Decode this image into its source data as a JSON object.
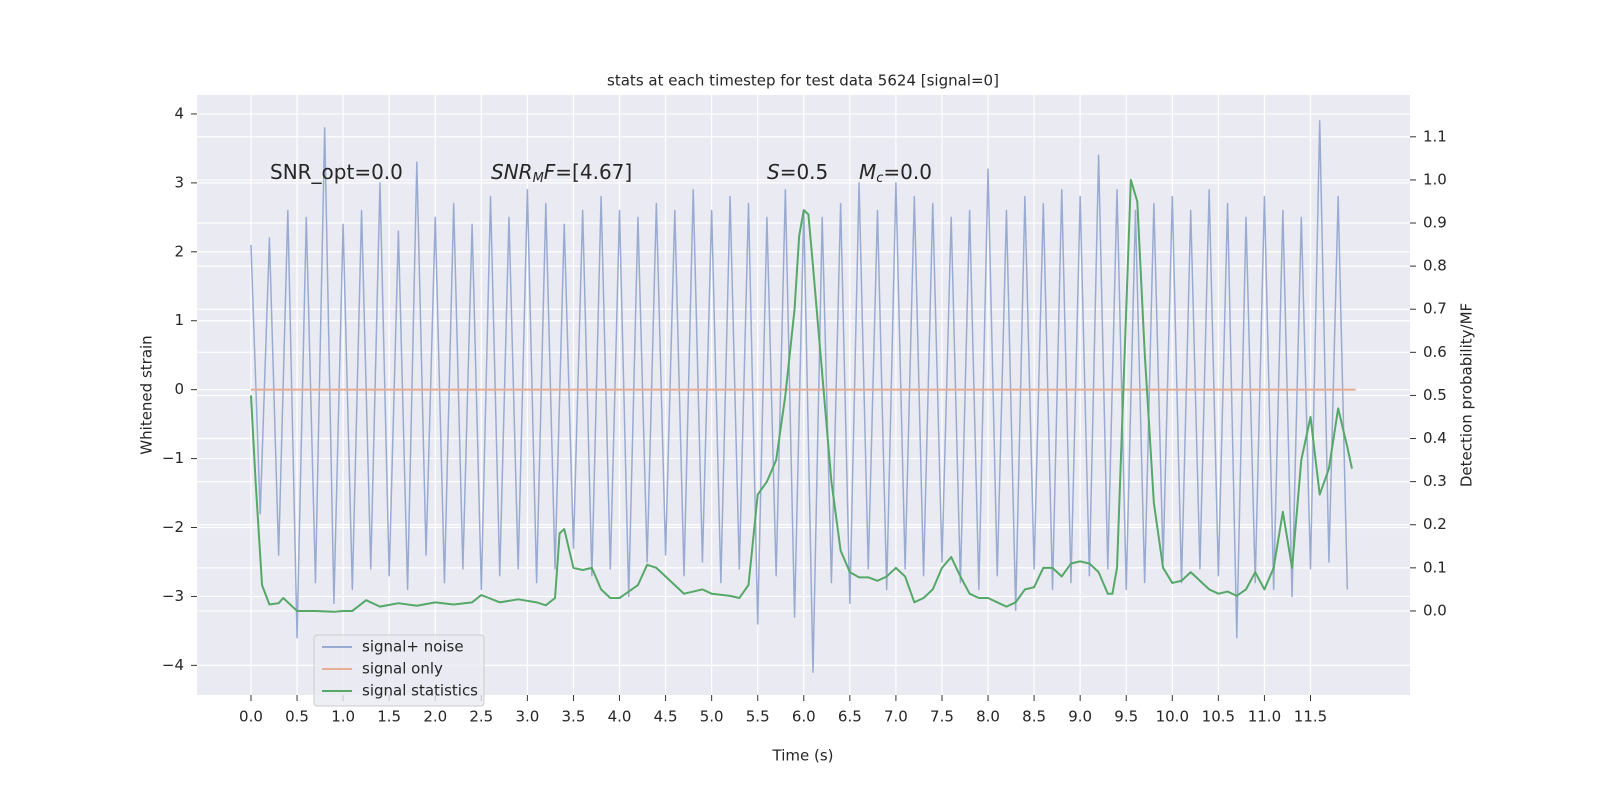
{
  "chart_data": {
    "type": "line",
    "title": "stats at each timestep for test data 5624 [signal=0]",
    "xlabel": "Time (s)",
    "ylabel": "Whitened strain",
    "y2label": "Detection probability/MF",
    "xlim": [
      -0.586,
      12.58
    ],
    "ylim": [
      -4.43,
      4.275
    ],
    "y2lim": [
      -0.195,
      1.197
    ],
    "xticks": [
      {
        "value": 0,
        "label": "0.0"
      },
      0.5,
      {
        "value": 1,
        "label": "1.0"
      },
      1.5,
      {
        "value": 2,
        "label": "2.0"
      },
      2.5,
      {
        "value": 3,
        "label": "3.0"
      },
      3.5,
      {
        "value": 4,
        "label": "4.0"
      },
      4.5,
      {
        "value": 5,
        "label": "5.0"
      },
      5.5,
      {
        "value": 6,
        "label": "6.0"
      },
      6.5,
      {
        "value": 7,
        "label": "7.0"
      },
      7.5,
      {
        "value": 8,
        "label": "8.0"
      },
      8.5,
      {
        "value": 9,
        "label": "9.0"
      },
      9.5,
      {
        "value": 10,
        "label": "10.0"
      },
      10.5,
      {
        "value": 11,
        "label": "11.0"
      },
      11.5
    ],
    "yticks": [
      {
        "value": -4,
        "label": "−4"
      },
      {
        "value": -3,
        "label": "−3"
      },
      {
        "value": -2,
        "label": "−2"
      },
      {
        "value": -1,
        "label": "−1"
      },
      0,
      1,
      2,
      3,
      4
    ],
    "y2ticks": [
      {
        "value": 0,
        "label": "0.0"
      },
      0.1,
      0.2,
      0.3,
      0.4,
      0.5,
      0.6,
      0.7,
      0.8,
      0.9,
      {
        "value": 1,
        "label": "1.0"
      },
      1.1
    ],
    "grid": true,
    "legend": "lower left",
    "annotations": [
      [
        {
          "text": "SNR_opt=0.0"
        }
      ],
      [
        {
          "text": "SNR",
          "italic": true
        },
        {
          "text": "M",
          "italic": true,
          "sub": true
        },
        {
          "text": "F",
          "italic": true
        },
        {
          "text": "=[4.67]"
        }
      ],
      [
        {
          "text": "S",
          "italic": true
        },
        {
          "text": "=0.5"
        }
      ],
      [
        {
          "text": "M",
          "italic": true
        },
        {
          "text": "c",
          "italic": true,
          "sub": true
        },
        {
          "text": "=0.0"
        }
      ]
    ],
    "series": [
      {
        "name": "signal+ noise",
        "color": "#9aabd2",
        "x": [
          0,
          0.1,
          0.2,
          0.3,
          0.4,
          0.5,
          0.6,
          0.7,
          0.8,
          0.9,
          1,
          1.1,
          1.2,
          1.3,
          1.4,
          1.5,
          1.6,
          1.7,
          1.8,
          1.9,
          2,
          2.1,
          2.2,
          2.3,
          2.4,
          2.5,
          2.6,
          2.7,
          2.8,
          2.9,
          3,
          3.1,
          3.2,
          3.3,
          3.4,
          3.5,
          3.6,
          3.7,
          3.8,
          3.9,
          4,
          4.1,
          4.2,
          4.3,
          4.4,
          4.5,
          4.6,
          4.7,
          4.8,
          4.9,
          5,
          5.1,
          5.2,
          5.3,
          5.4,
          5.5,
          5.6,
          5.7,
          5.8,
          5.9,
          6,
          6.1,
          6.2,
          6.3,
          6.4,
          6.5,
          6.6,
          6.7,
          6.8,
          6.9,
          7,
          7.1,
          7.2,
          7.3,
          7.4,
          7.5,
          7.6,
          7.7,
          7.8,
          7.9,
          8,
          8.1,
          8.2,
          8.3,
          8.4,
          8.5,
          8.6,
          8.7,
          8.8,
          8.9,
          9,
          9.1,
          9.2,
          9.3,
          9.4,
          9.5,
          9.6,
          9.7,
          9.8,
          9.9,
          10,
          10.1,
          10.2,
          10.3,
          10.4,
          10.5,
          10.6,
          10.7,
          10.8,
          10.9,
          11,
          11.1,
          11.2,
          11.3,
          11.4,
          11.5,
          11.6,
          11.7,
          11.8,
          11.9
        ],
        "values": [
          2.1,
          -1.8,
          2.2,
          -2.4,
          2.6,
          -3.6,
          2.5,
          -2.8,
          3.8,
          -3.1,
          2.4,
          -2.9,
          2.6,
          -2.6,
          3.0,
          -2.7,
          2.3,
          -2.9,
          3.3,
          -2.4,
          2.5,
          -2.8,
          2.7,
          -2.6,
          2.4,
          -2.9,
          2.8,
          -2.7,
          2.5,
          -2.6,
          2.9,
          -2.8,
          2.7,
          -2.6,
          2.4,
          -2.3,
          2.6,
          -2.7,
          2.8,
          -2.6,
          2.6,
          -3.0,
          2.5,
          -2.5,
          2.7,
          -2.4,
          2.6,
          -2.7,
          2.9,
          -2.5,
          2.6,
          -2.8,
          2.8,
          -2.6,
          2.7,
          -3.4,
          2.5,
          -2.7,
          2.9,
          -3.3,
          2.6,
          -4.1,
          2.5,
          -2.8,
          2.7,
          -3.1,
          3.0,
          -2.6,
          2.6,
          -2.9,
          3.0,
          -2.6,
          2.8,
          -2.7,
          2.7,
          -2.5,
          2.5,
          -2.8,
          2.6,
          -2.9,
          3.2,
          -2.7,
          2.6,
          -3.2,
          2.8,
          -2.6,
          2.7,
          -2.9,
          2.9,
          -2.8,
          2.8,
          -2.7,
          3.4,
          -2.6,
          2.9,
          -2.9,
          2.6,
          -2.8,
          2.7,
          -2.5,
          2.8,
          -2.8,
          2.6,
          -2.6,
          2.9,
          -2.7,
          2.7,
          -3.6,
          2.5,
          -2.8,
          2.8,
          -2.9,
          2.6,
          -3.0,
          2.5,
          -2.6,
          3.9,
          -2.5,
          2.8,
          -2.9
        ]
      },
      {
        "name": "signal only",
        "color": "#e8ae94",
        "x": [
          0,
          11.99
        ],
        "values": [
          0,
          0
        ]
      },
      {
        "name": "signal statistics",
        "color": "#55a868",
        "axis": "y2",
        "x": [
          0,
          0.05,
          0.12,
          0.2,
          0.3,
          0.35,
          0.5,
          0.7,
          0.9,
          1,
          1.1,
          1.25,
          1.4,
          1.6,
          1.8,
          2,
          2.2,
          2.4,
          2.5,
          2.7,
          2.9,
          3.1,
          3.2,
          3.3,
          3.35,
          3.4,
          3.5,
          3.6,
          3.7,
          3.8,
          3.9,
          4,
          4.2,
          4.3,
          4.4,
          4.6,
          4.7,
          4.8,
          4.9,
          5,
          5.2,
          5.3,
          5.4,
          5.5,
          5.6,
          5.7,
          5.8,
          5.9,
          5.95,
          6,
          6.05,
          6.1,
          6.2,
          6.3,
          6.4,
          6.5,
          6.6,
          6.7,
          6.8,
          6.9,
          7,
          7.1,
          7.2,
          7.3,
          7.4,
          7.5,
          7.6,
          7.7,
          7.8,
          7.9,
          8,
          8.1,
          8.2,
          8.3,
          8.4,
          8.5,
          8.6,
          8.7,
          8.8,
          8.9,
          9,
          9.1,
          9.2,
          9.3,
          9.35,
          9.4,
          9.5,
          9.55,
          9.62,
          9.7,
          9.8,
          9.9,
          10,
          10.1,
          10.2,
          10.3,
          10.4,
          10.5,
          10.6,
          10.7,
          10.8,
          10.9,
          11,
          11.1,
          11.2,
          11.3,
          11.4,
          11.5,
          11.6,
          11.7,
          11.8,
          11.9,
          11.95
        ],
        "values": [
          0.5,
          0.3,
          0.06,
          0.015,
          0.018,
          0.03,
          0.0,
          0.0,
          -0.002,
          0.0,
          0.0,
          0.025,
          0.01,
          0.018,
          0.012,
          0.02,
          0.015,
          0.02,
          0.037,
          0.02,
          0.027,
          0.02,
          0.013,
          0.03,
          0.18,
          0.19,
          0.1,
          0.095,
          0.1,
          0.05,
          0.03,
          0.03,
          0.06,
          0.107,
          0.1,
          0.06,
          0.04,
          0.045,
          0.05,
          0.04,
          0.035,
          0.03,
          0.06,
          0.27,
          0.3,
          0.35,
          0.5,
          0.7,
          0.87,
          0.93,
          0.92,
          0.8,
          0.55,
          0.3,
          0.14,
          0.09,
          0.078,
          0.078,
          0.07,
          0.08,
          0.1,
          0.08,
          0.02,
          0.03,
          0.05,
          0.1,
          0.125,
          0.08,
          0.04,
          0.03,
          0.03,
          0.02,
          0.01,
          0.02,
          0.05,
          0.055,
          0.1,
          0.1,
          0.08,
          0.11,
          0.115,
          0.11,
          0.09,
          0.04,
          0.04,
          0.1,
          0.7,
          1.0,
          0.95,
          0.6,
          0.25,
          0.1,
          0.065,
          0.07,
          0.09,
          0.07,
          0.05,
          0.04,
          0.045,
          0.035,
          0.05,
          0.09,
          0.05,
          0.1,
          0.23,
          0.1,
          0.35,
          0.45,
          0.27,
          0.33,
          0.47,
          0.38,
          0.33
        ]
      }
    ]
  }
}
